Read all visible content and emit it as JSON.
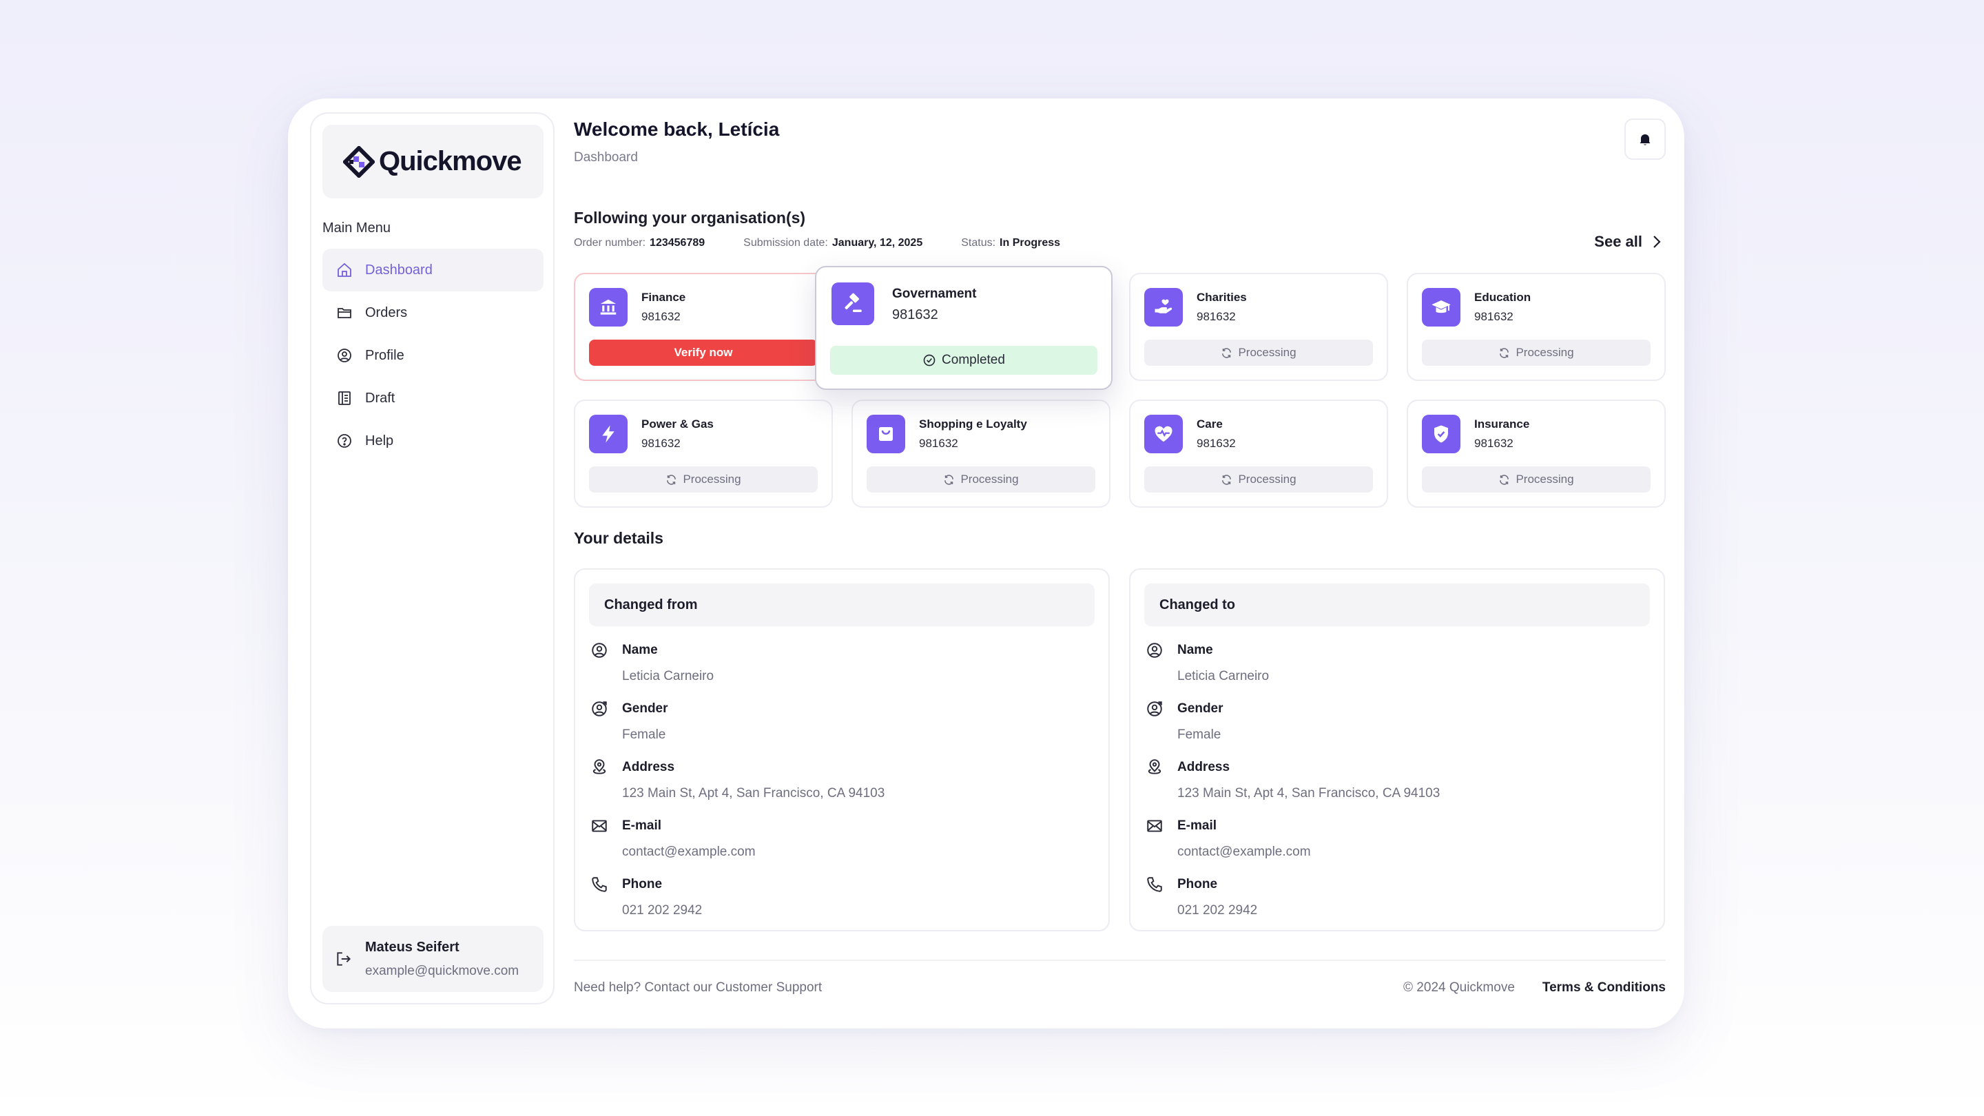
{
  "app": {
    "name": "Quickmove"
  },
  "sidebar": {
    "menu_title": "Main Menu",
    "items": [
      {
        "label": "Dashboard",
        "icon": "home-icon",
        "active": true
      },
      {
        "label": "Orders",
        "icon": "folder-icon"
      },
      {
        "label": "Profile",
        "icon": "user-circle-icon"
      },
      {
        "label": "Draft",
        "icon": "draft-icon"
      },
      {
        "label": "Help",
        "icon": "help-icon"
      }
    ],
    "user": {
      "name": "Mateus Seifert",
      "email": "example@quickmove.com"
    }
  },
  "header": {
    "welcome": "Welcome back, Letícia",
    "breadcrumb": "Dashboard"
  },
  "orgs": {
    "title": "Following your organisation(s)",
    "order_label": "Order number:",
    "order_value": "123456789",
    "date_label": "Submission date:",
    "date_value": "January, 12, 2025",
    "status_label": "Status:",
    "status_value": "In Progress",
    "see_all": "See all",
    "cards": [
      {
        "name": "Finance",
        "number": "981632",
        "status": "Verify now",
        "state": "alert",
        "icon": "bank-icon"
      },
      {
        "name": "Governament",
        "number": "981632",
        "status": "Completed",
        "state": "completed",
        "icon": "gavel-icon"
      },
      {
        "name": "Charities",
        "number": "981632",
        "status": "Processing",
        "state": "processing",
        "icon": "hand-heart-icon"
      },
      {
        "name": "Education",
        "number": "981632",
        "status": "Processing",
        "state": "processing",
        "icon": "graduation-cap-icon"
      },
      {
        "name": "Power & Gas",
        "number": "981632",
        "status": "Processing",
        "state": "processing",
        "icon": "lightning-icon"
      },
      {
        "name": "Shopping e Loyalty",
        "number": "981632",
        "status": "Processing",
        "state": "processing",
        "icon": "shopping-bag-icon"
      },
      {
        "name": "Care",
        "number": "981632",
        "status": "Processing",
        "state": "processing",
        "icon": "heart-pulse-icon"
      },
      {
        "name": "Insurance",
        "number": "981632",
        "status": "Processing",
        "state": "processing",
        "icon": "shield-check-icon"
      }
    ]
  },
  "details": {
    "title": "Your details",
    "from": {
      "title": "Changed from",
      "fields": [
        {
          "label": "Name",
          "value": "Leticia Carneiro",
          "icon": "user-circle-icon"
        },
        {
          "label": "Gender",
          "value": "Female",
          "icon": "gender-icon"
        },
        {
          "label": "Address",
          "value": "123 Main St, Apt 4, San Francisco, CA 94103",
          "icon": "location-icon"
        },
        {
          "label": "E-mail",
          "value": "contact@example.com",
          "icon": "mail-icon"
        },
        {
          "label": "Phone",
          "value": "021 202 2942",
          "icon": "phone-icon"
        }
      ]
    },
    "to": {
      "title": "Changed to",
      "fields": [
        {
          "label": "Name",
          "value": "Leticia Carneiro",
          "icon": "user-circle-icon"
        },
        {
          "label": "Gender",
          "value": "Female",
          "icon": "gender-icon"
        },
        {
          "label": "Address",
          "value": "123 Main St, Apt 4, San Francisco, CA 94103",
          "icon": "location-icon"
        },
        {
          "label": "E-mail",
          "value": "contact@example.com",
          "icon": "mail-icon"
        },
        {
          "label": "Phone",
          "value": "021 202 2942",
          "icon": "phone-icon"
        }
      ]
    }
  },
  "footer": {
    "help": "Need help? Contact our Customer Support",
    "copyright": "© 2024 Quickmove",
    "terms": "Terms & Conditions"
  },
  "colors": {
    "accent": "#7A5CF0",
    "alert": "#EF4444",
    "success_bg": "#DCF7E4"
  }
}
